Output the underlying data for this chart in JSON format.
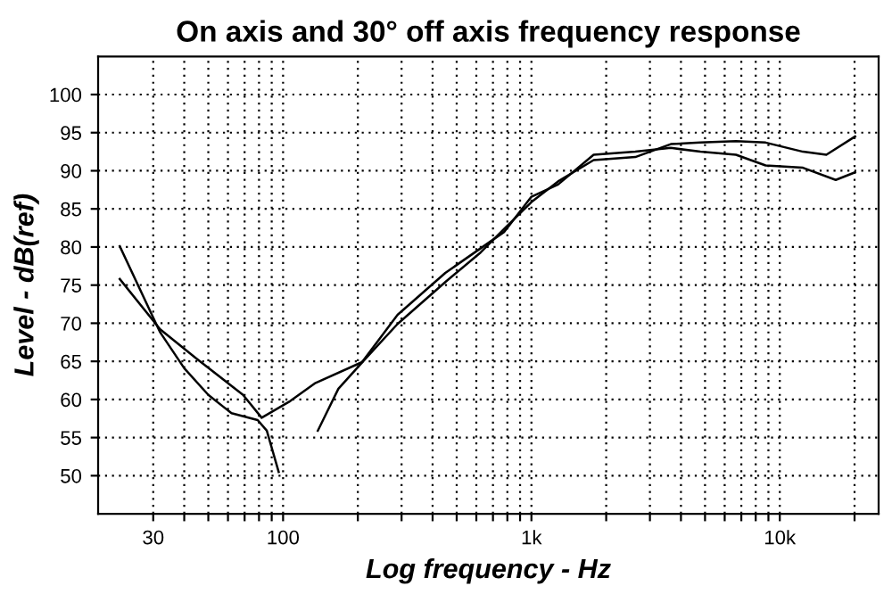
{
  "chart_data": {
    "type": "line",
    "title": "On axis and 30° off axis frequency response",
    "xlabel": "Log frequency - Hz",
    "ylabel": "Level - dB(ref)",
    "log": "x",
    "grid": true,
    "marker": "none",
    "line_style": "solid",
    "xlim": [
      18,
      25000
    ],
    "ylim": [
      45,
      105
    ],
    "xticks": [
      {
        "value": 30,
        "label": "30"
      },
      {
        "value": 40,
        "label": null
      },
      {
        "value": 50,
        "label": null
      },
      {
        "value": 60,
        "label": null
      },
      {
        "value": 70,
        "label": null
      },
      {
        "value": 80,
        "label": null
      },
      {
        "value": 90,
        "label": null
      },
      {
        "value": 100,
        "label": "100"
      },
      {
        "value": 200,
        "label": null
      },
      {
        "value": 300,
        "label": null
      },
      {
        "value": 400,
        "label": null
      },
      {
        "value": 500,
        "label": null
      },
      {
        "value": 600,
        "label": null
      },
      {
        "value": 700,
        "label": null
      },
      {
        "value": 800,
        "label": null
      },
      {
        "value": 900,
        "label": null
      },
      {
        "value": 1000,
        "label": "1k"
      },
      {
        "value": 2000,
        "label": null
      },
      {
        "value": 3000,
        "label": null
      },
      {
        "value": 4000,
        "label": null
      },
      {
        "value": 5000,
        "label": null
      },
      {
        "value": 6000,
        "label": null
      },
      {
        "value": 7000,
        "label": null
      },
      {
        "value": 8000,
        "label": null
      },
      {
        "value": 9000,
        "label": null
      },
      {
        "value": 10000,
        "label": "10k"
      },
      {
        "value": 20000,
        "label": null
      }
    ],
    "yticks": [
      50,
      55,
      60,
      65,
      70,
      75,
      80,
      85,
      90,
      95,
      100
    ],
    "series": [
      {
        "color": "#000000",
        "x": [
          22,
          32,
          40,
          50,
          62,
          79,
          86,
          96,
          109,
          120,
          138,
          167,
          214,
          289,
          450,
          625,
          778,
          1000,
          1280,
          1780,
          2620,
          3640,
          4790,
          6660,
          8770,
          12400,
          15400,
          20100
        ],
        "values": [
          80.1,
          68.8,
          64.1,
          60.6,
          58.2,
          57.3,
          55.9,
          50.5,
          null,
          null,
          55.9,
          61.4,
          65.3,
          69.9,
          75.4,
          79.3,
          82.4,
          85.9,
          88.6,
          91.4,
          91.8,
          93.5,
          93.7,
          93.9,
          93.7,
          92.5,
          92.1,
          94.5
        ]
      },
      {
        "color": "#000000",
        "x": [
          22,
          32,
          45,
          69,
          82,
          107,
          134,
          208,
          289,
          450,
          778,
          1000,
          1280,
          1780,
          2620,
          3640,
          4790,
          6660,
          8770,
          12400,
          16800,
          20100
        ],
        "values": [
          75.8,
          69.2,
          65.3,
          60.6,
          57.6,
          59.8,
          62.1,
          64.9,
          71.1,
          76.6,
          82,
          86.6,
          88.2,
          92.1,
          92.5,
          93,
          92.5,
          92.1,
          90.7,
          90.4,
          88.8,
          89.8
        ]
      }
    ]
  }
}
